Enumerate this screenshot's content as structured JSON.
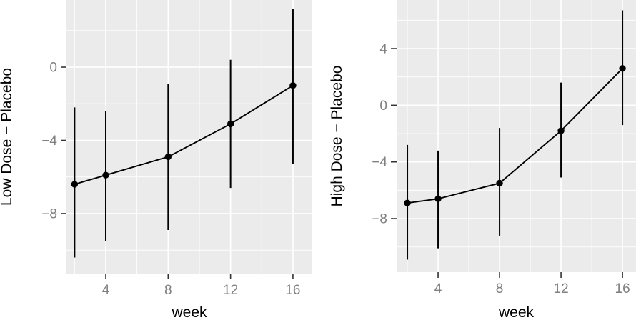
{
  "figure": {
    "background": "#FFFFFF",
    "description_colors": {
      "panel_bg": "#EBEBEB",
      "grid": "#FFFFFF",
      "data": "#000000",
      "tick_label": "#7F7F7F",
      "tick_mark": "#333333",
      "axis_title": "#000000"
    }
  },
  "chart_data": [
    {
      "type": "line",
      "subtype": "pointrange-with-error-bars",
      "title": "",
      "xlabel": "week",
      "ylabel": "Low Dose − Placebo",
      "x": [
        2,
        4,
        8,
        12,
        16
      ],
      "series": [
        {
          "name": "Low Dose − Placebo estimate",
          "values": [
            -6.4,
            -5.9,
            -4.9,
            -3.1,
            -1.0
          ]
        }
      ],
      "error_low": [
        -10.4,
        -9.5,
        -8.9,
        -6.6,
        -5.3
      ],
      "error_high": [
        -2.2,
        -2.4,
        -0.9,
        0.4,
        3.2
      ],
      "xlim": [
        1.48,
        17.24
      ],
      "ylim": [
        -11.28,
        3.67
      ],
      "x_ticks": {
        "values": [
          4,
          8,
          12,
          16
        ],
        "labels": [
          "4",
          "8",
          "12",
          "16"
        ]
      },
      "y_ticks": {
        "values": [
          0,
          -4,
          -8
        ],
        "labels": [
          "0",
          "−4",
          "−8"
        ]
      },
      "x_minor": [
        2,
        6,
        10,
        14
      ],
      "y_minor": [
        2,
        -2,
        -6,
        -10
      ],
      "grid": true,
      "legend": false
    },
    {
      "type": "line",
      "subtype": "pointrange-with-error-bars",
      "title": "",
      "xlabel": "week",
      "ylabel": "High Dose − Placebo",
      "x": [
        2,
        4,
        8,
        12,
        16
      ],
      "series": [
        {
          "name": "High Dose − Placebo estimate",
          "values": [
            -6.9,
            -6.6,
            -5.5,
            -1.8,
            2.6
          ]
        }
      ],
      "error_low": [
        -10.9,
        -10.1,
        -9.2,
        -5.1,
        -1.4
      ],
      "error_high": [
        -2.8,
        -3.2,
        -1.6,
        1.6,
        6.7
      ],
      "xlim": [
        1.3,
        16.88
      ],
      "ylim": [
        -11.78,
        7.43
      ],
      "x_ticks": {
        "values": [
          4,
          8,
          12,
          16
        ],
        "labels": [
          "4",
          "8",
          "12",
          "16"
        ]
      },
      "y_ticks": {
        "values": [
          4,
          0,
          -4,
          -8
        ],
        "labels": [
          "4",
          "0",
          "−4",
          "−8"
        ]
      },
      "x_minor": [
        2,
        6,
        10,
        14
      ],
      "y_minor": [
        6,
        2,
        -2,
        -6,
        -10
      ],
      "grid": true,
      "legend": false
    }
  ]
}
